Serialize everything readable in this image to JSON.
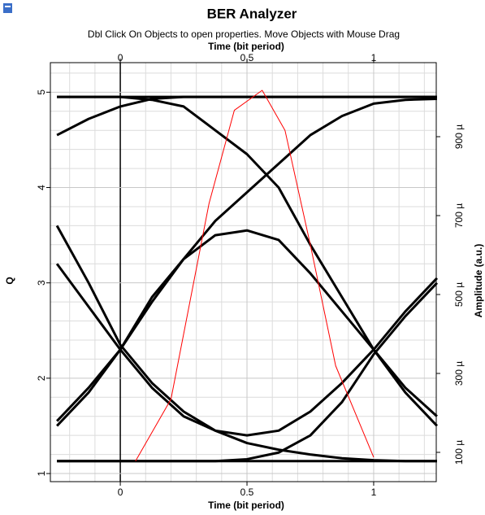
{
  "chart_data": {
    "type": "line",
    "title": "BER Analyzer",
    "subtitle": "Dbl Click On Objects to open properties.  Move Objects with Mouse Drag",
    "x_label": "Time (bit period)",
    "x2_label": "Time (bit period)",
    "y_label": "Q",
    "y2_label": "Amplitude (a.u.)",
    "xlim": [
      -0.276,
      1.247
    ],
    "xticks": [
      0,
      0.5,
      1
    ],
    "xminorticks": [
      -0.2,
      -0.1,
      0.1,
      0.2,
      0.3,
      0.4,
      0.6,
      0.7,
      0.8,
      0.9,
      1.1,
      1.2
    ],
    "ylim": [
      0.915,
      5.31
    ],
    "yticks": [
      1,
      2,
      3,
      4,
      5
    ],
    "yminorticks": [
      1.2,
      1.4,
      1.6,
      1.8,
      2.2,
      2.4,
      2.6,
      2.8,
      3.2,
      3.4,
      3.6,
      3.8,
      4.2,
      4.4,
      4.6,
      4.8,
      5.2
    ],
    "y2lim": [
      2.58e-05,
      0.0010876
    ],
    "y2ticks": [
      {
        "value": 0.0001,
        "label": "100 µ"
      },
      {
        "value": 0.0003,
        "label": "300 µ"
      },
      {
        "value": 0.0005,
        "label": "500 µ"
      },
      {
        "value": 0.0007,
        "label": "700 µ"
      },
      {
        "value": 0.0009,
        "label": "900 µ"
      }
    ],
    "grid": true,
    "x": [
      -0.25,
      -0.125,
      0,
      0.125,
      0.25,
      0.375,
      0.5,
      0.625,
      0.75,
      0.875,
      1,
      1.125,
      1.25
    ],
    "series": [
      {
        "color": "#000000",
        "values": [
          4.95,
          4.95,
          4.95,
          4.95,
          4.95,
          4.95,
          4.95,
          4.95,
          4.95,
          4.95,
          4.95,
          4.95,
          4.95
        ]
      },
      {
        "color": "#000000",
        "values": [
          1.13,
          1.13,
          1.13,
          1.13,
          1.13,
          1.13,
          1.13,
          1.13,
          1.13,
          1.13,
          1.13,
          1.13,
          1.13
        ]
      },
      {
        "color": "#000000",
        "values": [
          4.95,
          4.95,
          4.95,
          4.92,
          4.85,
          4.6,
          4.35,
          4.0,
          3.4,
          2.85,
          2.3,
          1.85,
          1.5
        ]
      },
      {
        "color": "#000000",
        "values": [
          1.5,
          1.85,
          2.3,
          2.8,
          3.25,
          3.65,
          3.95,
          4.25,
          4.55,
          4.75,
          4.88,
          4.92,
          4.93
        ]
      },
      {
        "color": "#000000",
        "values": [
          3.6,
          3.0,
          2.35,
          1.95,
          1.65,
          1.45,
          1.32,
          1.25,
          1.2,
          1.16,
          1.14,
          1.13,
          1.13
        ]
      },
      {
        "color": "#000000",
        "values": [
          3.2,
          2.75,
          2.3,
          1.9,
          1.6,
          1.45,
          1.4,
          1.45,
          1.65,
          1.95,
          2.3,
          2.7,
          3.05
        ]
      },
      {
        "color": "#000000",
        "values": [
          1.13,
          1.13,
          1.13,
          1.13,
          1.13,
          1.13,
          1.15,
          1.22,
          1.4,
          1.75,
          2.25,
          2.65,
          3.0
        ]
      },
      {
        "color": "#000000",
        "values": [
          1.55,
          1.9,
          2.3,
          2.85,
          3.25,
          3.5,
          3.55,
          3.45,
          3.1,
          2.7,
          2.3,
          1.9,
          1.6
        ]
      },
      {
        "color": "#000000",
        "values": [
          4.55,
          4.72,
          4.85,
          4.93,
          4.95,
          4.95,
          4.95,
          4.95,
          4.95,
          4.95,
          4.95,
          4.95,
          4.95
        ]
      },
      {
        "color": "#ff0000",
        "x": [
          0.06,
          0.2,
          0.35,
          0.45,
          0.56,
          0.65,
          0.75,
          0.85,
          1.0
        ],
        "values": [
          1.13,
          1.78,
          3.83,
          4.81,
          5.02,
          4.6,
          3.4,
          2.13,
          1.17
        ]
      }
    ]
  }
}
